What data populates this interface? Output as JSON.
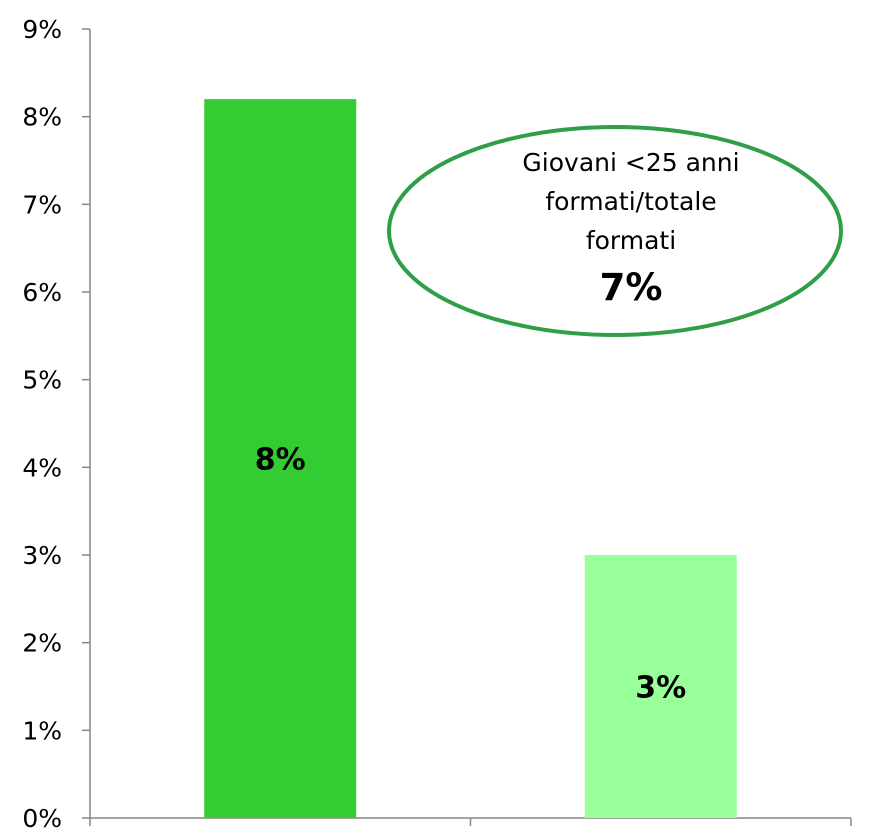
{
  "chart_data": {
    "type": "bar",
    "categories": [
      "",
      ""
    ],
    "values": [
      8.2,
      3.0
    ],
    "data_labels": [
      "8%",
      "3%"
    ],
    "colors": [
      "#33cc33",
      "#99ff99"
    ],
    "ylim": [
      0,
      9
    ],
    "yticks": [
      "0%",
      "1%",
      "2%",
      "3%",
      "4%",
      "5%",
      "6%",
      "7%",
      "8%",
      "9%"
    ],
    "grid": false,
    "legend": "none",
    "annotation": {
      "lines": [
        "Giovani <25 anni",
        "formati/totale",
        "formati"
      ],
      "value": "7%",
      "border_color": "#2e9e48"
    }
  }
}
